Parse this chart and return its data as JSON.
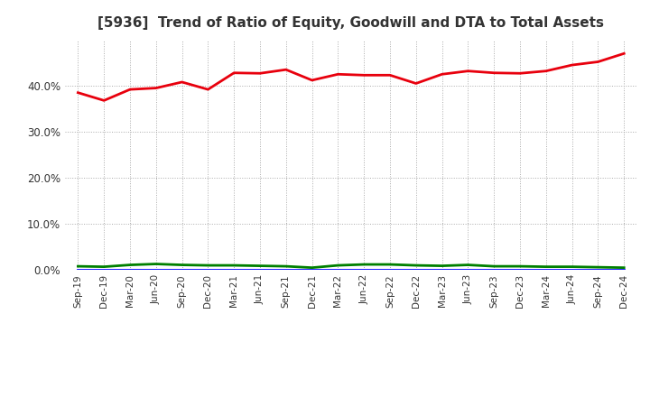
{
  "title": "[5936]  Trend of Ratio of Equity, Goodwill and DTA to Total Assets",
  "x_labels": [
    "Sep-19",
    "Dec-19",
    "Mar-20",
    "Jun-20",
    "Sep-20",
    "Dec-20",
    "Mar-21",
    "Jun-21",
    "Sep-21",
    "Dec-21",
    "Mar-22",
    "Jun-22",
    "Sep-22",
    "Dec-22",
    "Mar-23",
    "Jun-23",
    "Sep-23",
    "Dec-23",
    "Mar-24",
    "Jun-24",
    "Sep-24",
    "Dec-24"
  ],
  "equity": [
    38.5,
    36.8,
    39.2,
    39.5,
    40.8,
    39.2,
    42.8,
    42.7,
    43.5,
    41.2,
    42.5,
    42.3,
    42.3,
    40.5,
    42.5,
    43.2,
    42.8,
    42.7,
    43.2,
    44.5,
    45.2,
    47.0
  ],
  "goodwill": [
    0.0,
    0.0,
    0.0,
    0.0,
    0.0,
    0.0,
    0.0,
    0.0,
    0.0,
    0.0,
    0.0,
    0.0,
    0.0,
    0.0,
    0.0,
    0.0,
    0.0,
    0.0,
    0.0,
    0.0,
    0.0,
    0.0
  ],
  "dta": [
    0.8,
    0.7,
    1.1,
    1.3,
    1.1,
    1.0,
    1.0,
    0.9,
    0.8,
    0.5,
    1.0,
    1.2,
    1.2,
    1.0,
    0.9,
    1.1,
    0.8,
    0.8,
    0.7,
    0.7,
    0.6,
    0.5
  ],
  "equity_color": "#e8000d",
  "goodwill_color": "#0000ff",
  "dta_color": "#008000",
  "ylim": [
    0,
    50
  ],
  "yticks": [
    0,
    10,
    20,
    30,
    40
  ],
  "background_color": "#ffffff",
  "plot_bg_color": "#ffffff",
  "grid_color": "#aaaaaa",
  "line_width": 2.0,
  "title_fontsize": 11,
  "tick_fontsize": 7.5,
  "ytick_fontsize": 8.5,
  "legend_fontsize": 9
}
